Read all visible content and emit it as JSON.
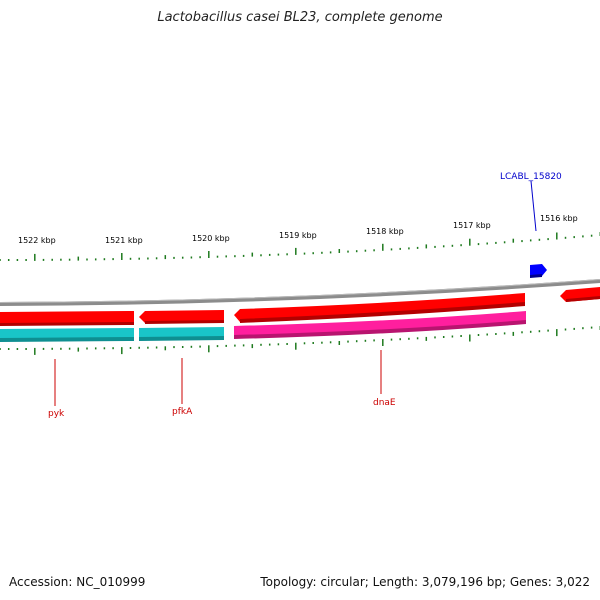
{
  "title": "Lactobacillus casei BL23, complete genome",
  "footer": {
    "accession": "Accession: NC_010999",
    "stats": "Topology: circular; Length: 3,079,196 bp; Genes: 3,022"
  },
  "colors": {
    "background": "#ffffff",
    "backbone": "#8c8c8c",
    "gene_red": "#ff0000",
    "gene_cyan": "#19c5c8",
    "gene_pink": "#ff1f9e",
    "gene_blue": "#0000ff",
    "tick": "#1e7a1e",
    "label_red": "#cc0000",
    "label_blue": "#0000cc"
  },
  "scale_labels": [
    "1522 kbp",
    "1521 kbp",
    "1520 kbp",
    "1519 kbp",
    "1518 kbp",
    "1517 kbp",
    "1516 kbp"
  ],
  "gene_labels": [
    {
      "text": "pyk",
      "color": "label_red"
    },
    {
      "text": "pfkA",
      "color": "label_red"
    },
    {
      "text": "dnaE",
      "color": "label_red"
    },
    {
      "text": "LCABL_15820",
      "color": "label_blue"
    }
  ]
}
